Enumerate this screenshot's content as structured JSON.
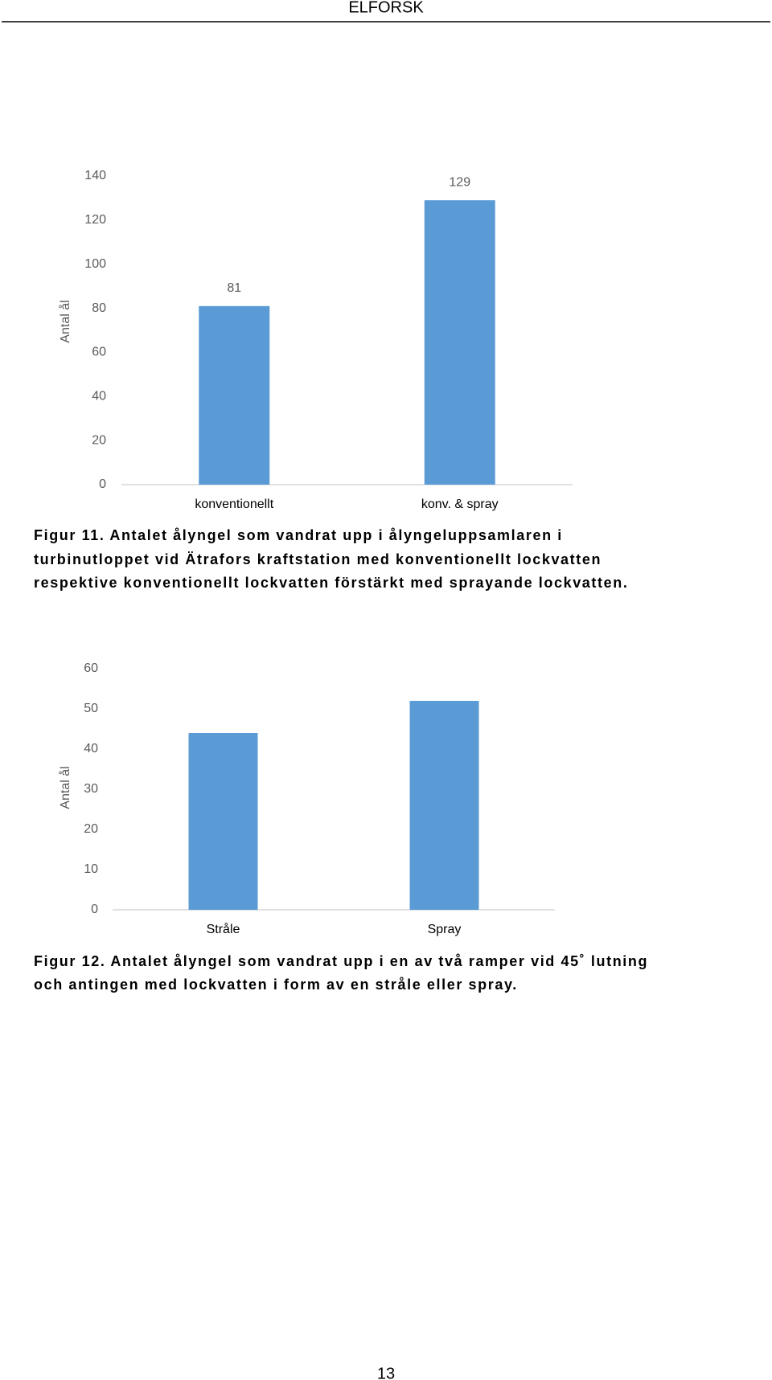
{
  "header": "ELFORSK",
  "chart_data": [
    {
      "type": "bar",
      "y_label": "Antal ål",
      "categories": [
        "konventionellt",
        "konv. & spray"
      ],
      "values": [
        81,
        129
      ],
      "color": "#5b9bd5",
      "ylim": [
        0,
        140
      ],
      "yticks": [
        0,
        20,
        40,
        60,
        80,
        100,
        120,
        140
      ],
      "data_labels": true
    },
    {
      "type": "bar",
      "y_label": "Antal ål",
      "categories": [
        "Stråle",
        "Spray"
      ],
      "values": [
        44,
        52
      ],
      "color": "#5b9bd5",
      "ylim": [
        0,
        60
      ],
      "yticks": [
        0,
        10,
        20,
        30,
        40,
        50,
        60
      ],
      "data_labels": false
    }
  ],
  "captions": [
    [
      "Figur 11. Antalet ålyngel som vandrat upp i ålyngeluppsamlaren i",
      "turbinutloppet vid Ätrafors kraftstation med konventionellt lockvatten",
      "respektive konventionellt lockvatten förstärkt med sprayande lockvatten."
    ],
    [
      "Figur 12. Antalet ålyngel som vandrat upp i en av två ramper vid 45˚ lutning",
      "och antingen med lockvatten i form av en stråle eller spray."
    ]
  ],
  "page_number": "13"
}
